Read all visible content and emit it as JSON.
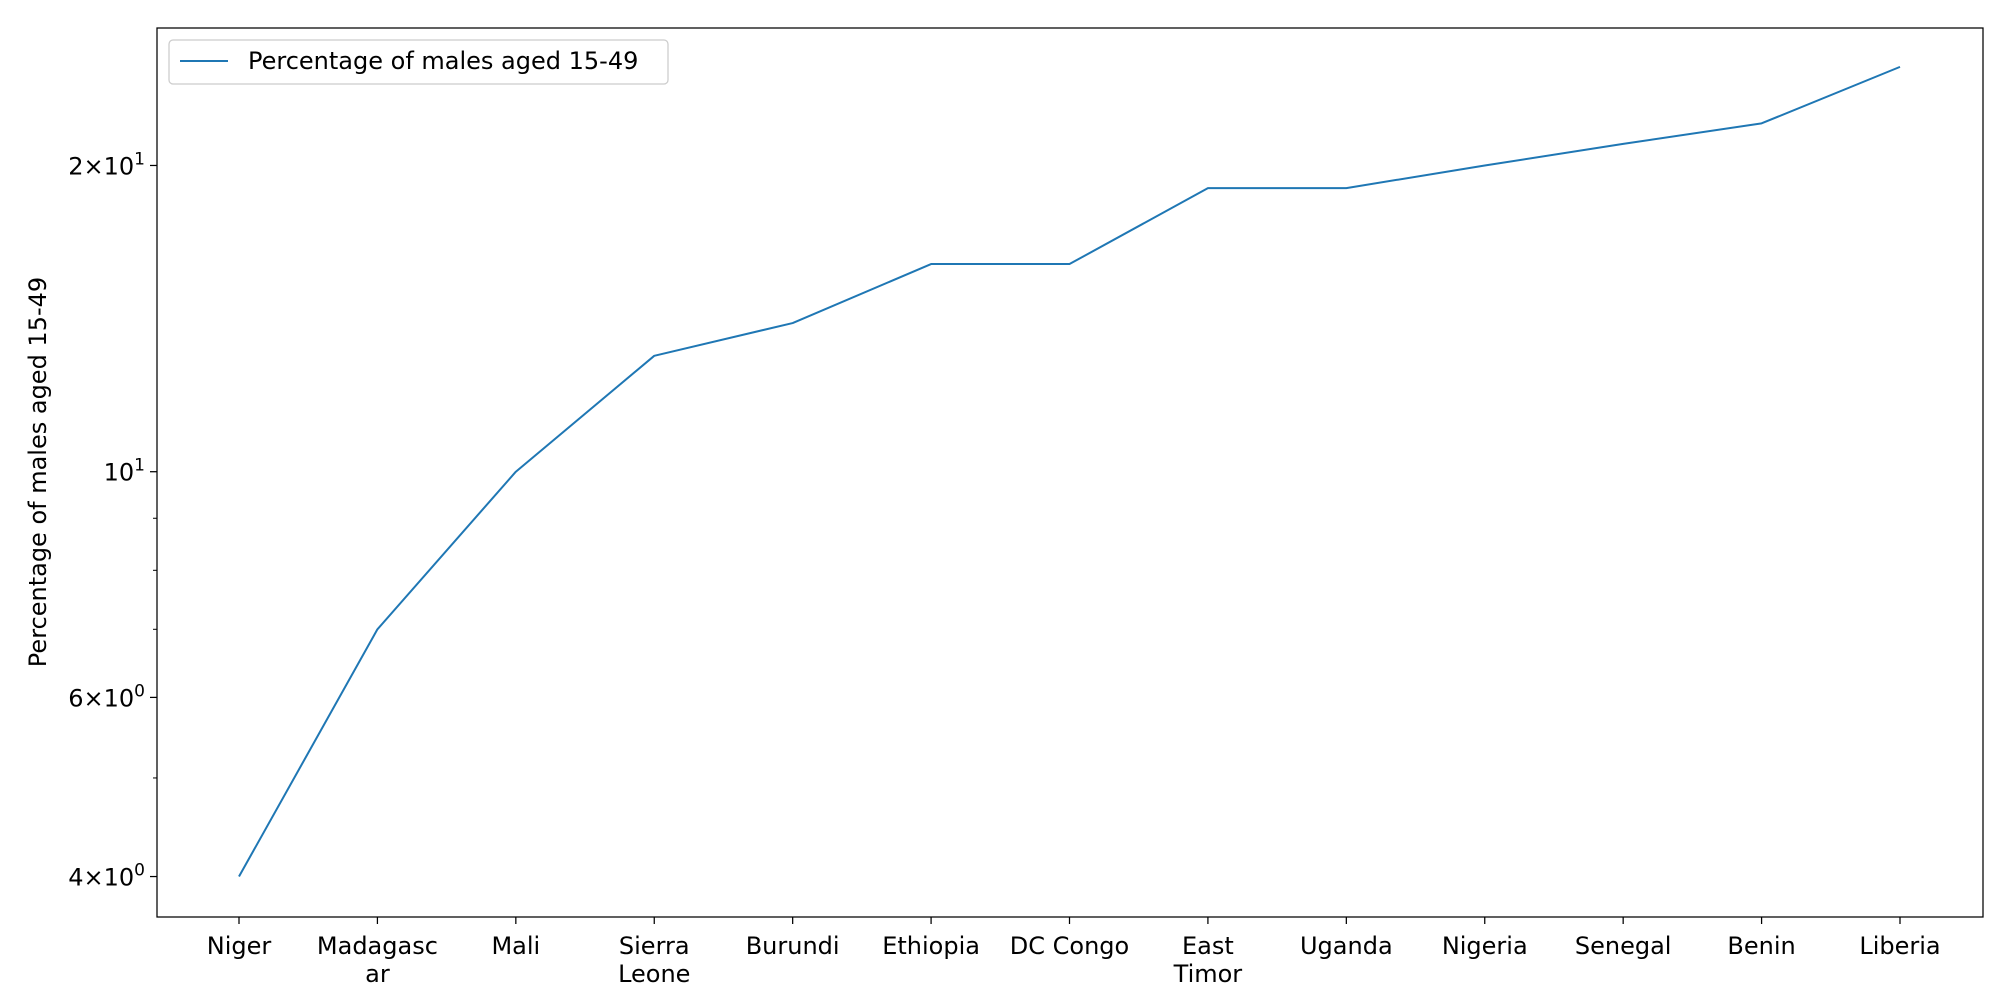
{
  "chart_data": {
    "type": "line",
    "categories": [
      [
        "Niger"
      ],
      [
        "Madagasc",
        "ar"
      ],
      [
        "Mali"
      ],
      [
        "Sierra",
        "Leone"
      ],
      [
        "Burundi"
      ],
      [
        "Ethiopia"
      ],
      [
        "DC Congo"
      ],
      [
        "East",
        "Timor"
      ],
      [
        "Uganda"
      ],
      [
        "Nigeria"
      ],
      [
        "Senegal"
      ],
      [
        "Benin"
      ],
      [
        "Liberia"
      ]
    ],
    "series": [
      {
        "name": "Percentage of males aged 15-49",
        "values": [
          4.0,
          7.0,
          10.0,
          13.0,
          14.0,
          16.0,
          16.0,
          19.0,
          19.0,
          20.0,
          21.0,
          22.0,
          25.0
        ],
        "color": "#1f77b4"
      }
    ],
    "xlabel": "",
    "ylabel": "Percentage of males aged 15-49",
    "yscale": "log",
    "ylim": [
      3.65,
      27.3
    ],
    "y_major_ticks": [
      {
        "value": 4,
        "mantissa": "4",
        "exponent": "0"
      },
      {
        "value": 6,
        "mantissa": "6",
        "exponent": "0"
      },
      {
        "value": 10,
        "mantissa": "",
        "exponent": "1"
      },
      {
        "value": 20,
        "mantissa": "2",
        "exponent": "1"
      }
    ],
    "y_minor_ticks": [
      5,
      7,
      8,
      9
    ],
    "grid": false,
    "legend_position": "upper-left"
  }
}
